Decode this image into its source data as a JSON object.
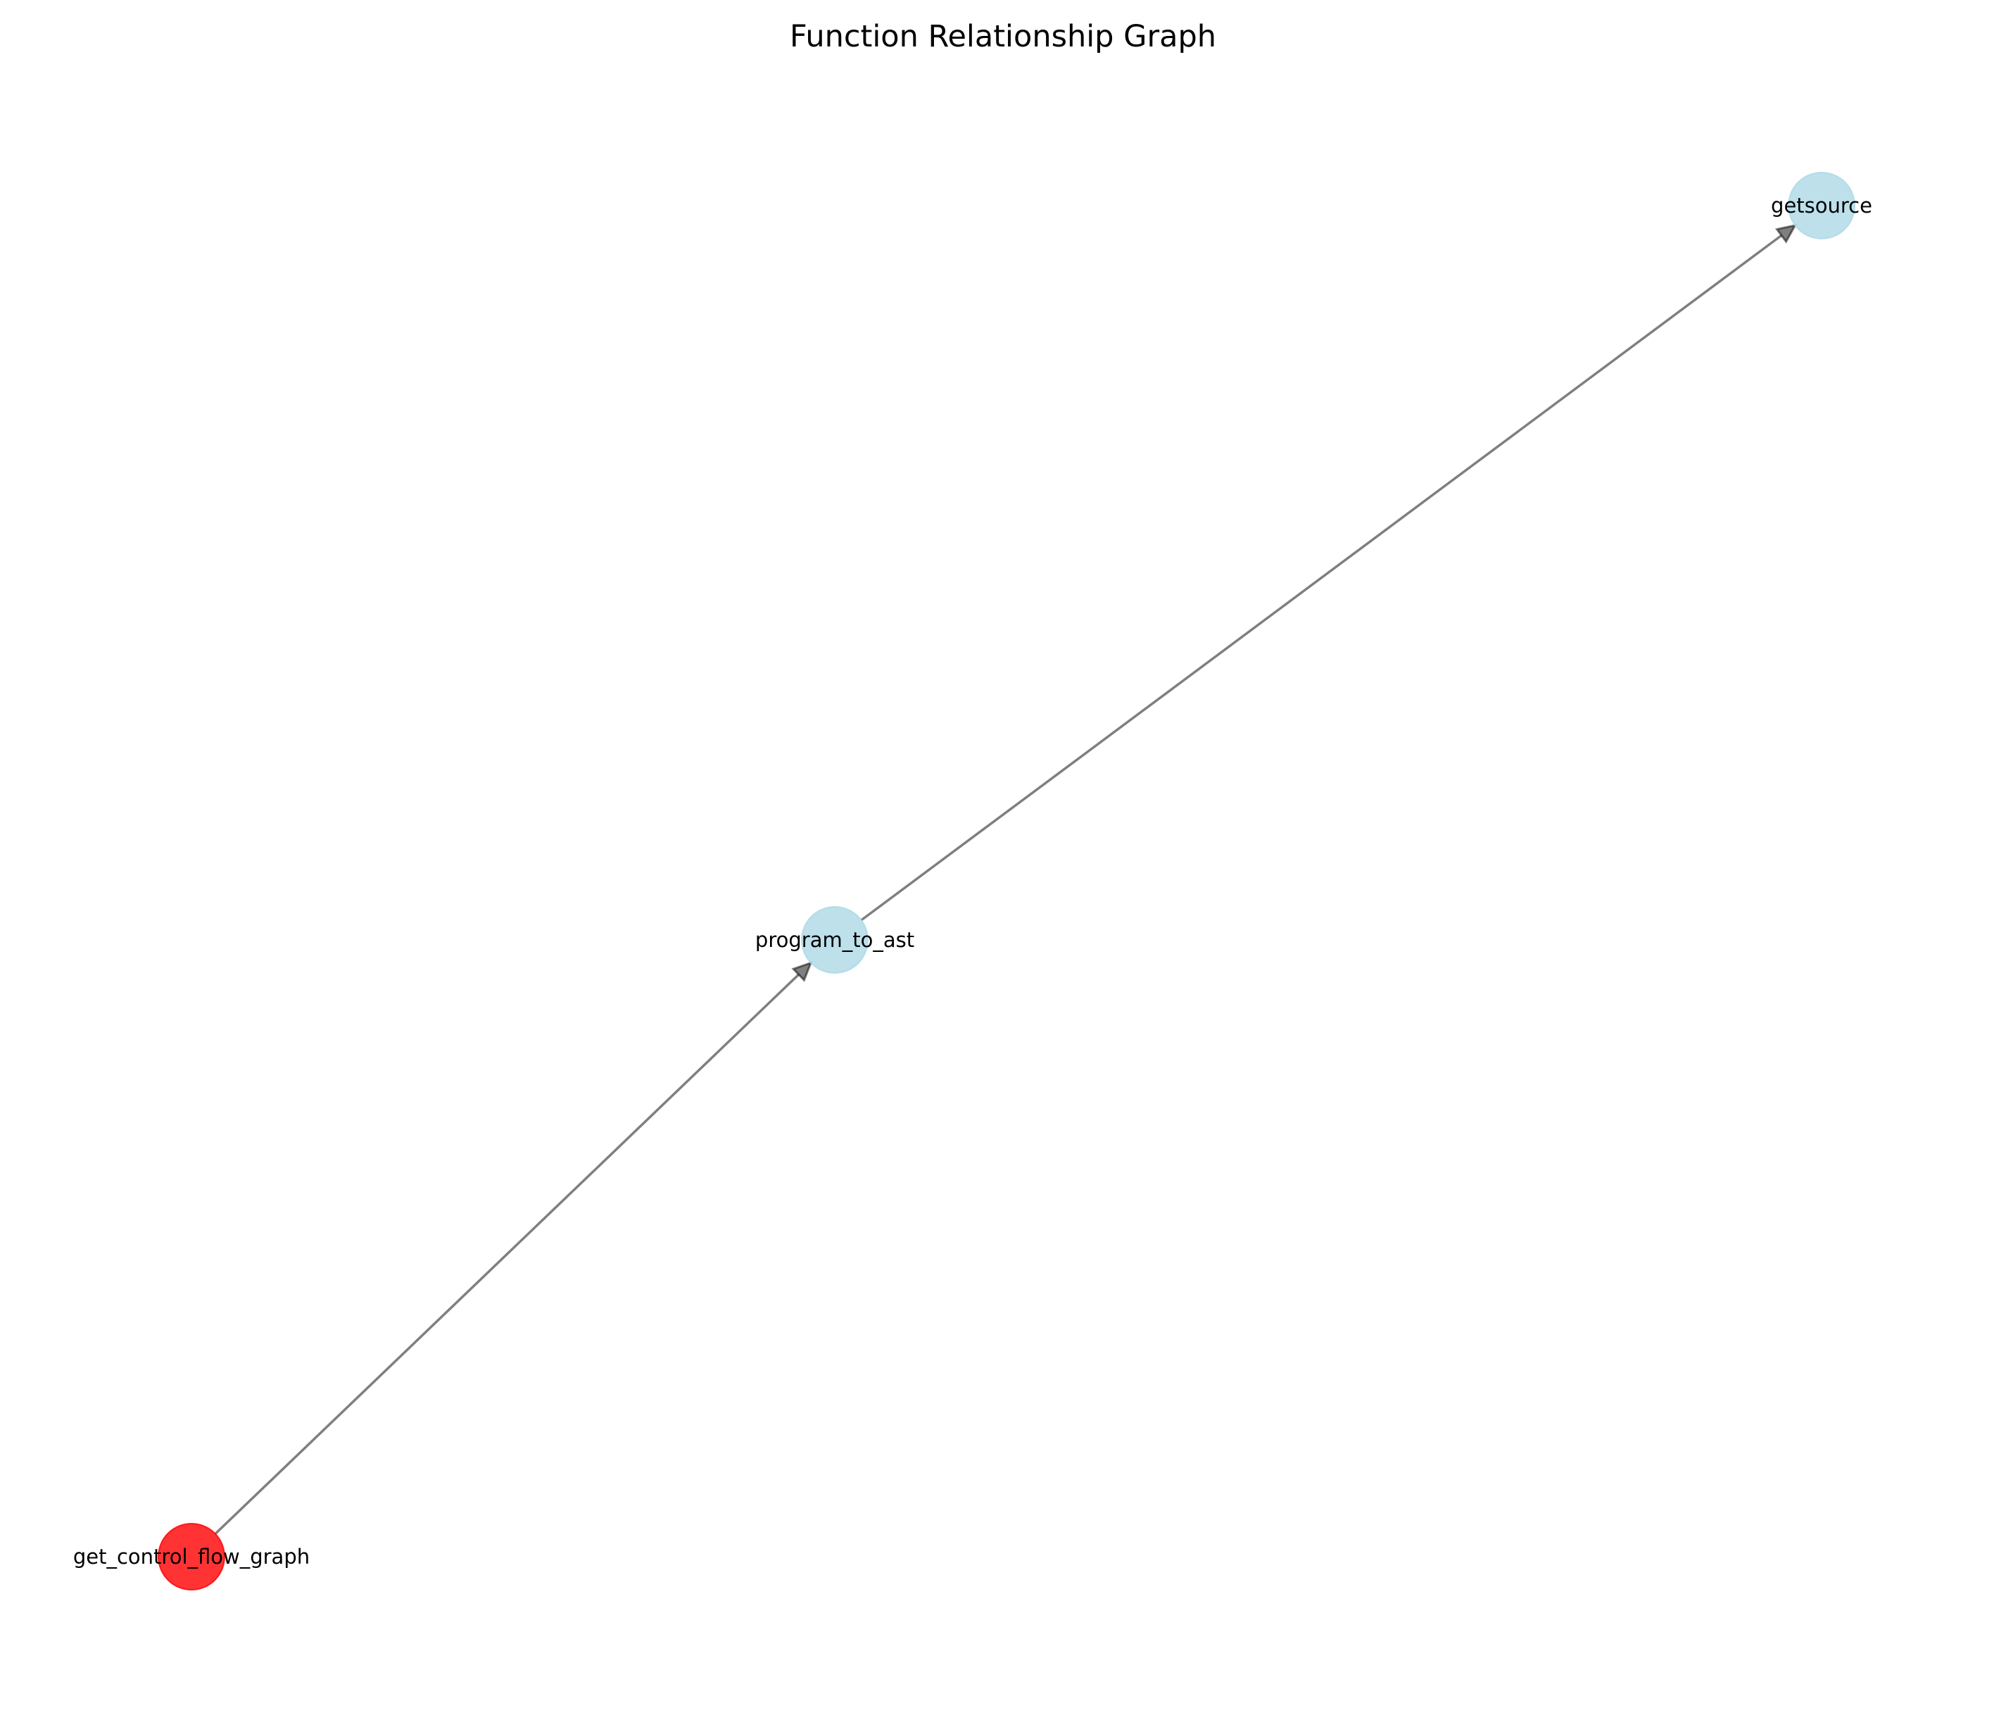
{
  "title": "Function Relationship Graph",
  "graph": {
    "nodes": [
      {
        "id": "get_control_flow_graph",
        "label": "get_control_flow_graph",
        "color": "#ff0000",
        "opacity": 0.8,
        "highlighted": true
      },
      {
        "id": "program_to_ast",
        "label": "program_to_ast",
        "color": "#add8e6",
        "opacity": 0.8,
        "highlighted": false
      },
      {
        "id": "getsource",
        "label": "getsource",
        "color": "#add8e6",
        "opacity": 0.8,
        "highlighted": false
      }
    ],
    "edges": [
      {
        "from": "get_control_flow_graph",
        "to": "program_to_ast",
        "directed": true
      },
      {
        "from": "program_to_ast",
        "to": "getsource",
        "directed": true
      }
    ]
  }
}
